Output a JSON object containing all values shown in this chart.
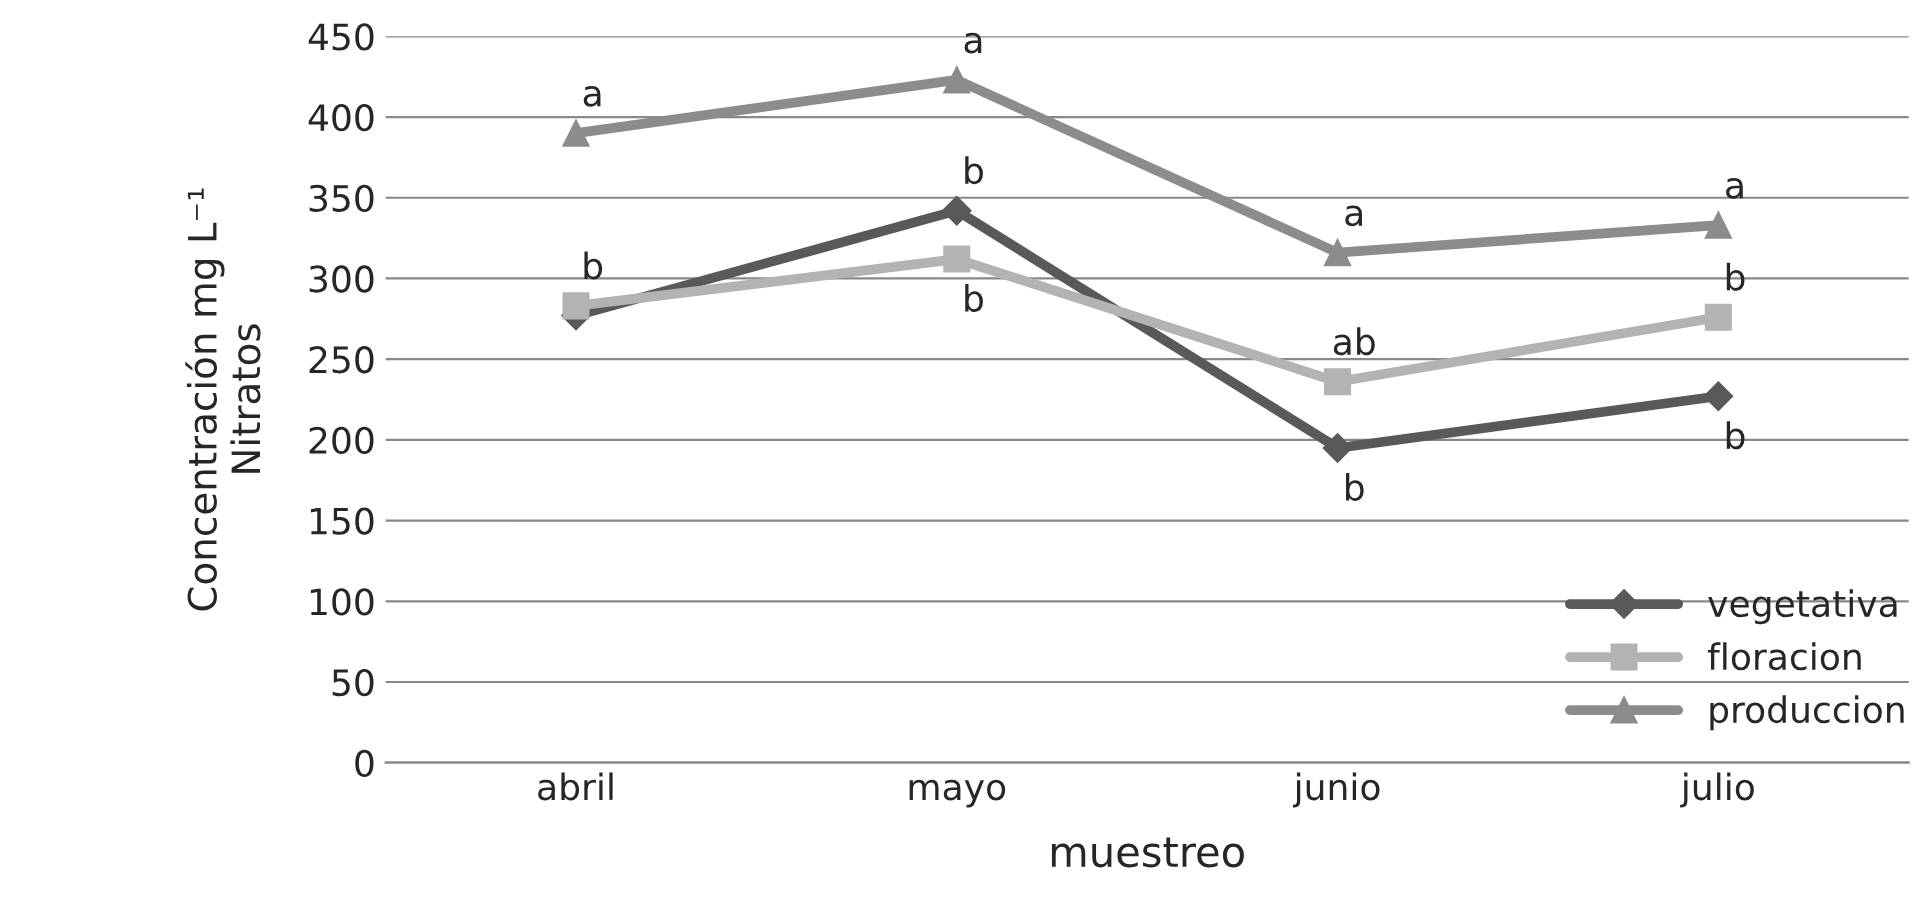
{
  "chart_data": {
    "type": "line",
    "xlabel": "muestreo",
    "ylabel": "Concentración mg L⁻¹\nNitratos",
    "categories": [
      "abril",
      "mayo",
      "junio",
      "julio"
    ],
    "series": [
      {
        "name": "vegetativa",
        "color": "#595959",
        "marker": "diamond",
        "values": [
          277,
          342,
          195,
          227
        ]
      },
      {
        "name": "floracion",
        "color": "#b3b3b3",
        "marker": "square",
        "values": [
          283,
          312,
          236,
          276
        ]
      },
      {
        "name": "produccion",
        "color": "#8c8c8c",
        "marker": "triangle",
        "values": [
          390,
          423,
          316,
          333
        ]
      }
    ],
    "annotations": [
      {
        "text": "a",
        "x": "abril",
        "y": 390
      },
      {
        "text": "b",
        "x": "abril",
        "y": 283
      },
      {
        "text": "a",
        "x": "mayo",
        "y": 423
      },
      {
        "text": "b",
        "x": "mayo",
        "y": 342
      },
      {
        "text": "b",
        "x": "mayo",
        "y": 312
      },
      {
        "text": "a",
        "x": "junio",
        "y": 316
      },
      {
        "text": "ab",
        "x": "junio",
        "y": 236
      },
      {
        "text": "b",
        "x": "junio",
        "y": 195
      },
      {
        "text": "a",
        "x": "julio",
        "y": 333
      },
      {
        "text": "b",
        "x": "julio",
        "y": 276
      },
      {
        "text": "b",
        "x": "julio",
        "y": 227
      }
    ],
    "ylim": [
      0,
      450
    ],
    "yticks": [
      0,
      50,
      100,
      150,
      200,
      250,
      300,
      350,
      400,
      450
    ],
    "grid": "y",
    "legend": "bottom right",
    "line_style": "solid"
  }
}
